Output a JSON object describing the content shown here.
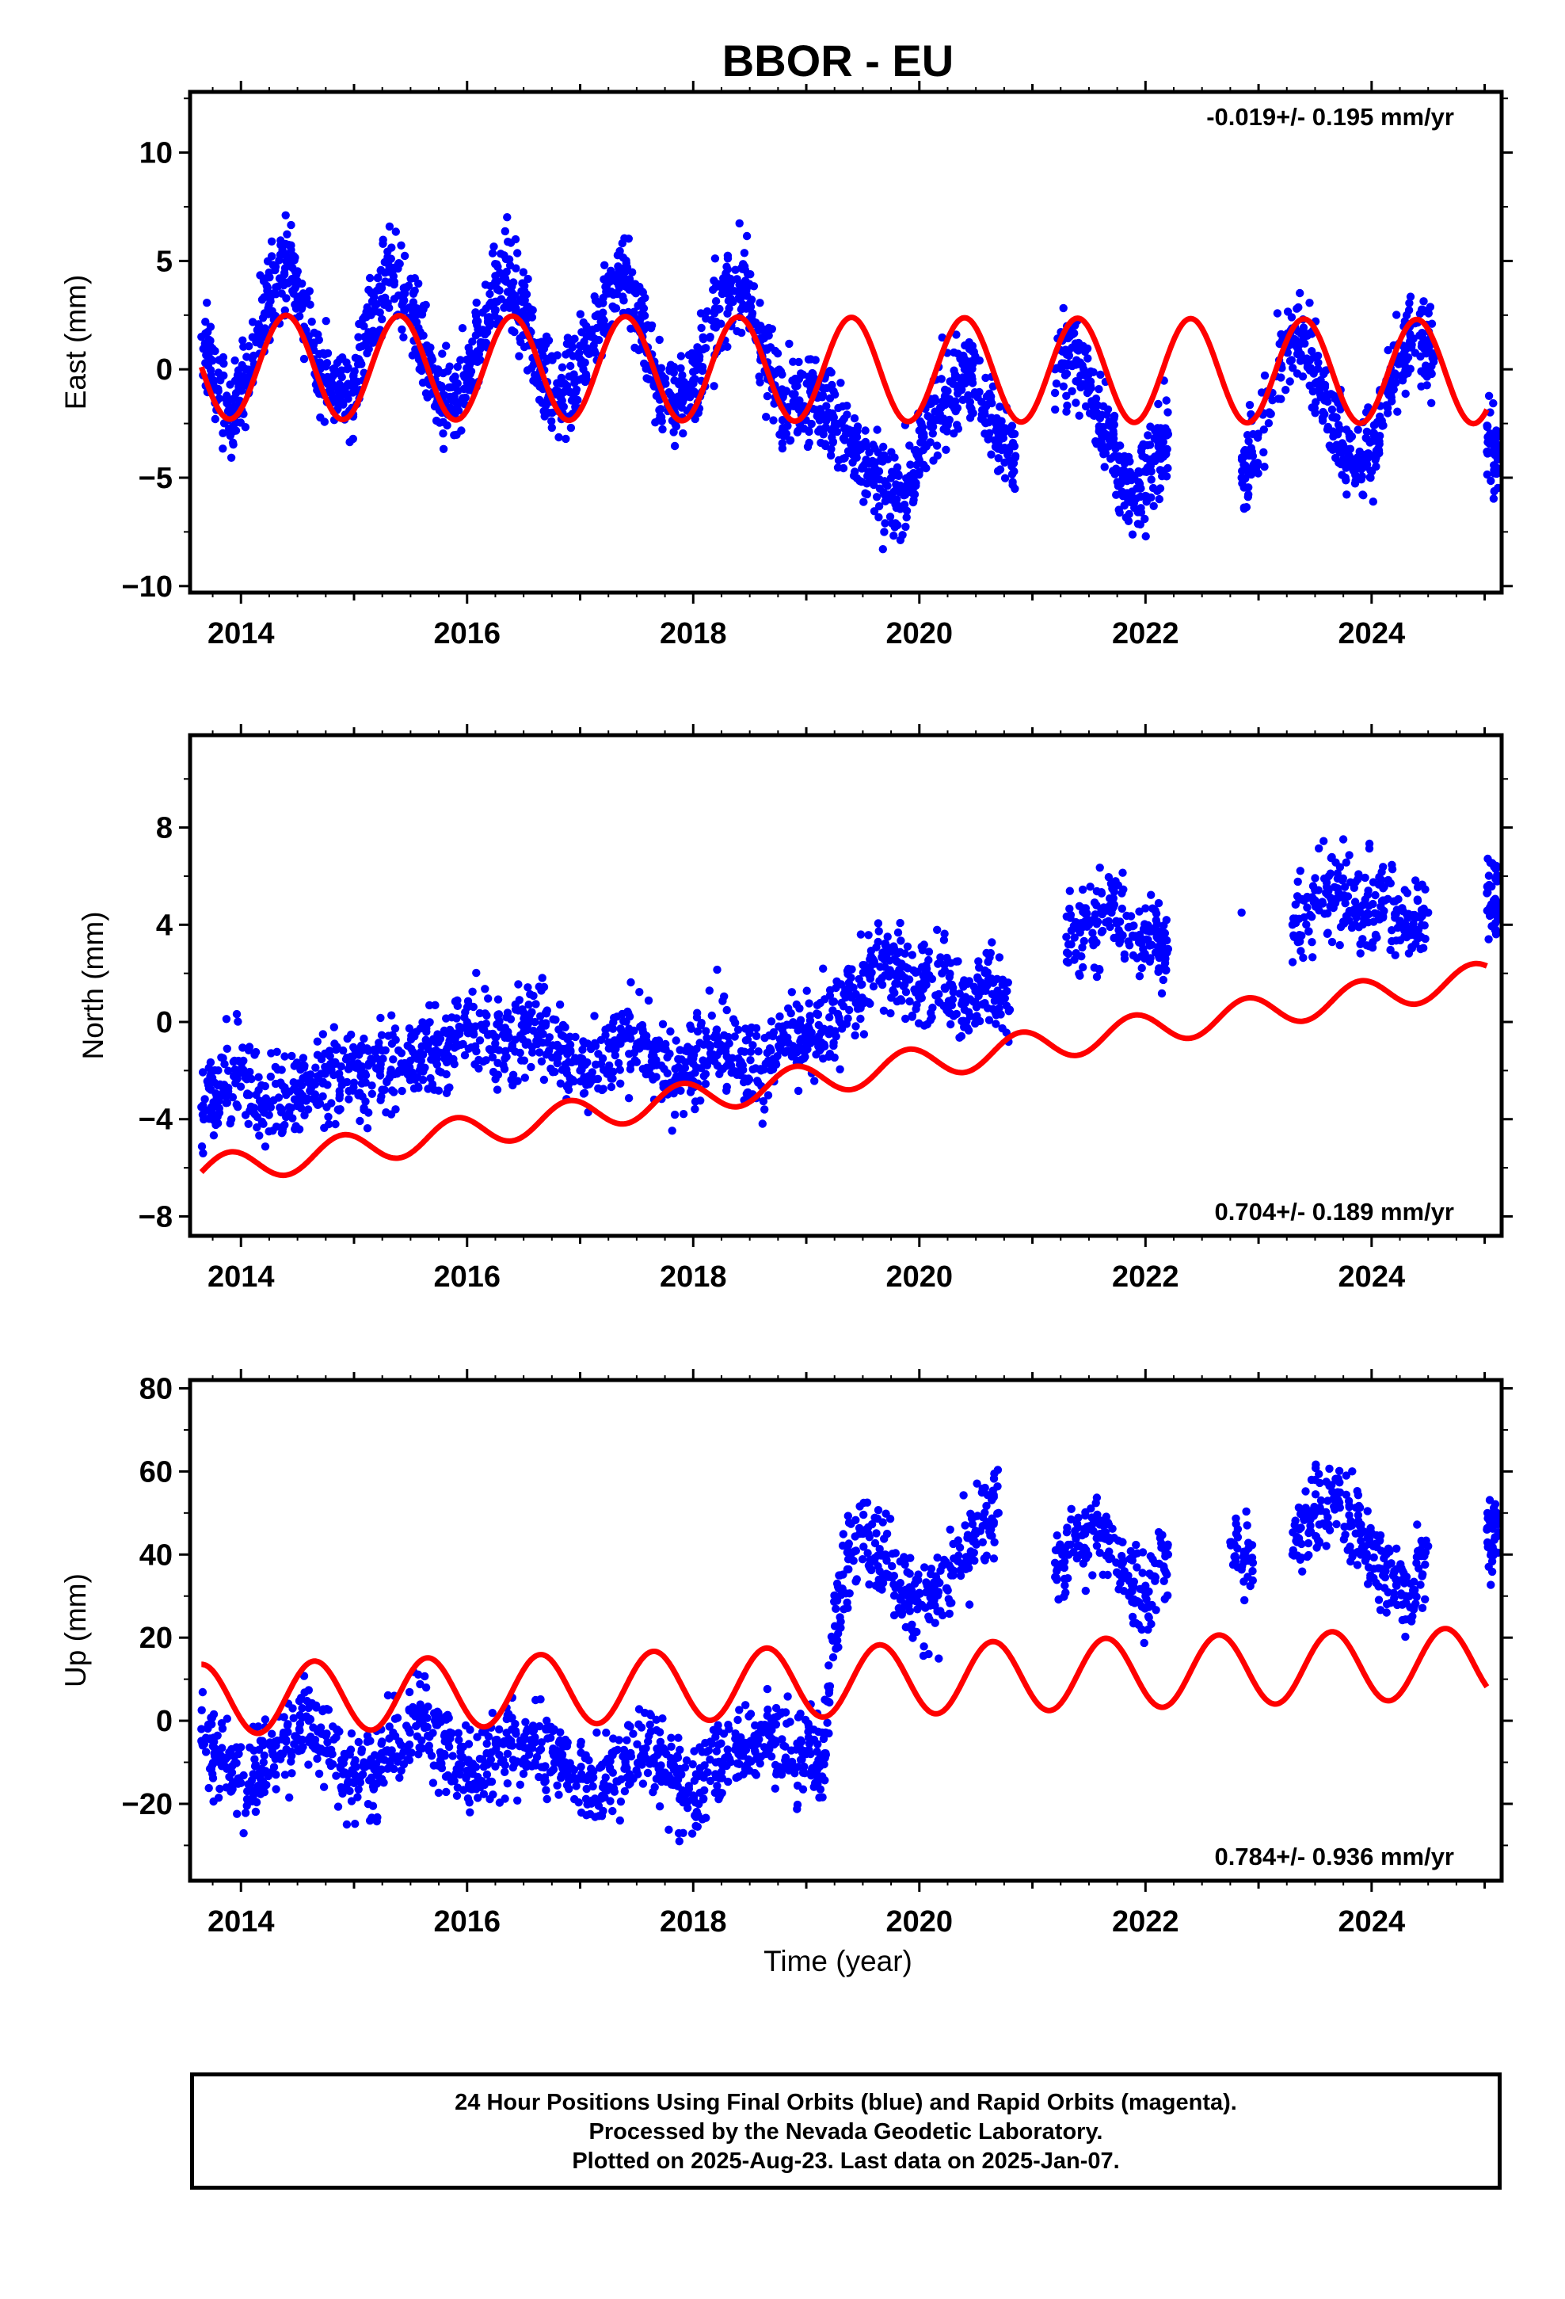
{
  "title": "BBOR - EU",
  "colors": {
    "points": "#0000ff",
    "model": "#ff0000",
    "axis": "#000000"
  },
  "x_ticks": [
    "2014",
    "2016",
    "2018",
    "2020",
    "2022",
    "2024"
  ],
  "x_label": "Time (year)",
  "caption": {
    "line1": "24 Hour Positions Using Final Orbits (blue) and Rapid Orbits (magenta).",
    "line2": "Processed by the Nevada Geodetic Laboratory.",
    "line3": "Plotted on 2025-Aug-23. Last data on 2025-Jan-07."
  },
  "chart_data": [
    {
      "type": "scatter",
      "title": "BBOR - EU",
      "ylabel": "East (mm)",
      "xlabel": "",
      "annotation": "-0.019+/- 0.195 mm/yr",
      "annotation_position": "top-right",
      "xlim": [
        2013.55,
        2025.15
      ],
      "ylim": [
        -10.3,
        12.8
      ],
      "yticks": [
        -10,
        -5,
        0,
        5,
        10
      ],
      "series": [
        {
          "kind": "points",
          "x": [
            2013.65,
            2013.8,
            2013.95,
            2014.1,
            2014.25,
            2014.4,
            2014.55,
            2014.7,
            2014.85,
            2015.0,
            2015.15,
            2015.3,
            2015.45,
            2015.6,
            2015.75,
            2015.9,
            2016.05,
            2016.2,
            2016.35,
            2016.5,
            2016.65,
            2016.8,
            2016.95,
            2017.1,
            2017.25,
            2017.4,
            2017.55,
            2017.7,
            2017.85,
            2018.0,
            2018.15,
            2018.3,
            2018.45,
            2018.6,
            2018.75,
            2018.9,
            2019.05,
            2019.2,
            2019.35,
            2019.5,
            2019.65,
            2019.8,
            2019.95,
            2020.1,
            2020.25,
            2020.4,
            2020.55,
            2020.7,
            2020.85,
            2021.2,
            2021.35,
            2021.5,
            2021.65,
            2021.8,
            2021.95,
            2022.1,
            2022.2,
            2022.85,
            2022.95,
            2023.25,
            2023.4,
            2023.55,
            2023.7,
            2023.85,
            2024.0,
            2024.15,
            2024.3,
            2024.45,
            2024.55,
            2025.02
          ],
          "y": [
            1.5,
            -1.0,
            -2.0,
            0.5,
            3.5,
            5.0,
            3.0,
            0.0,
            -1.5,
            -0.5,
            2.5,
            4.5,
            3.5,
            1.0,
            -1.5,
            -1.5,
            0.5,
            3.0,
            4.5,
            2.5,
            0.0,
            -1.0,
            -0.5,
            1.5,
            3.5,
            4.5,
            2.0,
            -1.0,
            -1.5,
            -0.5,
            1.5,
            3.5,
            4.0,
            1.0,
            -1.0,
            -1.5,
            -1.0,
            -2.0,
            -3.0,
            -4.5,
            -5.5,
            -6.0,
            -5.0,
            -2.5,
            -1.0,
            0.0,
            -1.5,
            -3.0,
            -4.0,
            0.0,
            1.0,
            -1.0,
            -3.0,
            -5.0,
            -5.5,
            -4.0,
            -3.0,
            -5.0,
            -4.0,
            1.0,
            1.5,
            -0.5,
            -3.0,
            -4.5,
            -4.0,
            -1.0,
            1.0,
            1.5,
            0.5,
            -3.8
          ]
        },
        {
          "kind": "line",
          "trend": -0.019,
          "amplitude": 2.4,
          "amplitude_growth": 0.0,
          "offset": 0.0,
          "peak_phase": 0.4,
          "x_start": 2013.65,
          "x_end": 2025.02
        }
      ]
    },
    {
      "type": "scatter",
      "ylabel": "North (mm)",
      "xlabel": "",
      "annotation": "0.704+/- 0.189 mm/yr",
      "annotation_position": "bottom-right",
      "xlim": [
        2013.55,
        2025.15
      ],
      "ylim": [
        -8.8,
        11.8
      ],
      "yticks": [
        -8,
        -4,
        0,
        4,
        8
      ],
      "series": [
        {
          "kind": "points",
          "x": [
            2013.65,
            2013.8,
            2014.0,
            2014.2,
            2014.4,
            2014.6,
            2014.8,
            2015.0,
            2015.2,
            2015.4,
            2015.6,
            2015.8,
            2016.0,
            2016.2,
            2016.4,
            2016.6,
            2016.8,
            2017.0,
            2017.2,
            2017.4,
            2017.6,
            2017.8,
            2018.0,
            2018.2,
            2018.4,
            2018.6,
            2018.8,
            2019.0,
            2019.2,
            2019.4,
            2019.6,
            2019.8,
            2020.0,
            2020.2,
            2020.4,
            2020.6,
            2020.8,
            2021.3,
            2021.5,
            2021.7,
            2021.9,
            2022.1,
            2022.2,
            2022.85,
            2023.3,
            2023.5,
            2023.7,
            2023.9,
            2024.1,
            2024.3,
            2024.5,
            2025.02
          ],
          "y": [
            -3.5,
            -3.0,
            -2.0,
            -3.5,
            -3.0,
            -2.5,
            -2.0,
            -2.5,
            -1.5,
            -2.0,
            -1.0,
            -1.5,
            0.0,
            -0.5,
            -1.0,
            0.0,
            -1.0,
            -2.0,
            -1.5,
            -0.5,
            -1.0,
            -2.5,
            -1.5,
            -0.5,
            -1.5,
            -2.0,
            -0.5,
            -1.0,
            -0.5,
            1.0,
            2.5,
            2.0,
            1.5,
            2.0,
            0.5,
            1.5,
            0.5,
            3.5,
            4.0,
            4.5,
            3.5,
            3.5,
            3.0,
            4.5,
            4.0,
            5.0,
            5.5,
            4.5,
            5.0,
            4.0,
            4.5,
            5.3
          ]
        },
        {
          "kind": "line",
          "trend": 0.704,
          "amplitude": 0.65,
          "amplitude_growth": 0.0,
          "offset": -2.2,
          "peak_phase": 0.9,
          "x_start": 2013.65,
          "x_end": 2025.02
        }
      ]
    },
    {
      "type": "scatter",
      "ylabel": "Up (mm)",
      "xlabel": "Time (year)",
      "annotation": "0.784+/- 0.936 mm/yr",
      "annotation_position": "bottom-right",
      "xlim": [
        2013.55,
        2025.15
      ],
      "ylim": [
        -38.5,
        82
      ],
      "yticks": [
        -20,
        0,
        20,
        40,
        60,
        80
      ],
      "series": [
        {
          "kind": "points",
          "x": [
            2013.65,
            2013.8,
            2014.0,
            2014.2,
            2014.4,
            2014.6,
            2014.8,
            2015.0,
            2015.2,
            2015.4,
            2015.6,
            2015.8,
            2016.0,
            2016.2,
            2016.4,
            2016.6,
            2016.8,
            2017.0,
            2017.2,
            2017.4,
            2017.6,
            2017.8,
            2018.0,
            2018.2,
            2018.4,
            2018.6,
            2018.8,
            2019.0,
            2019.15,
            2019.3,
            2019.5,
            2019.7,
            2019.9,
            2020.1,
            2020.3,
            2020.5,
            2020.7,
            2021.2,
            2021.4,
            2021.6,
            2021.8,
            2022.0,
            2022.2,
            2022.75,
            2022.95,
            2023.3,
            2023.5,
            2023.7,
            2023.9,
            2024.1,
            2024.3,
            2024.5,
            2025.02
          ],
          "y": [
            -2.0,
            -8.0,
            -15.0,
            -10.0,
            -5.0,
            0.0,
            -8.0,
            -15.0,
            -12.0,
            -5.0,
            2.0,
            -8.0,
            -12.0,
            -10.0,
            -6.0,
            -4.0,
            -10.0,
            -14.0,
            -16.0,
            -10.0,
            -5.0,
            -14.0,
            -18.0,
            -10.0,
            -8.0,
            -2.0,
            -6.0,
            -8.0,
            -10.0,
            35.0,
            45.0,
            40.0,
            30.0,
            28.0,
            35.0,
            45.0,
            50.0,
            38.0,
            42.0,
            45.0,
            38.0,
            30.0,
            40.0,
            43.0,
            38.0,
            40.0,
            50.0,
            55.0,
            45.0,
            35.0,
            30.0,
            42.0,
            46.0
          ]
        },
        {
          "kind": "line",
          "trend": 0.784,
          "amplitude": 8.5,
          "amplitude_growth": 0.0,
          "offset": 9.5,
          "peak_phase": 0.65,
          "x_start": 2013.65,
          "x_end": 2025.02
        }
      ]
    }
  ]
}
